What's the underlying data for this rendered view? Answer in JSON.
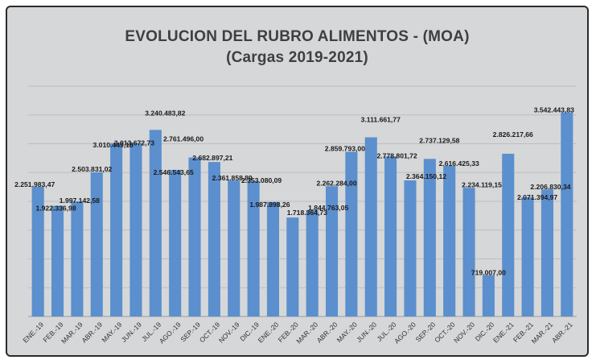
{
  "chart_data": {
    "type": "bar",
    "title": "EVOLUCION DEL RUBRO ALIMENTOS - (MOA)",
    "subtitle": "(Cargas 2019-2021)",
    "categories": [
      "ENE.-19",
      "FEB.-19",
      "MAR.-19",
      "ABR.-19",
      "MAY.-19",
      "JUN.-19",
      "JUL.-19",
      "AGO.-19",
      "SEP.-19",
      "OCT.-19",
      "NOV.-19",
      "DIC.-19",
      "ENE.-20",
      "FEB.-20",
      "MAR.-20",
      "ABR.-20",
      "MAY.-20",
      "JUN.-20",
      "JUL.-20",
      "AGO.-20",
      "SEP.-20",
      "OCT.-20",
      "NOV.-20",
      "DIC.-20",
      "ENE.-21",
      "FEB.-21",
      "MAR.-21",
      "ABR.-21"
    ],
    "values": [
      2251983.47,
      1922336.98,
      1997142.58,
      2503831.02,
      3010449.18,
      3013672.73,
      3240483.82,
      2546543.65,
      2761496.0,
      2682897.21,
      2361858.89,
      2353080.09,
      1987898.26,
      1718364.73,
      1844763.05,
      2262284.0,
      2859793.0,
      3111661.77,
      2778801.72,
      2364150.12,
      2737129.58,
      2616425.33,
      2234119.15,
      719007.0,
      2826217.66,
      2071394.97,
      2206830.34,
      3542443.83
    ],
    "data_labels": [
      "2.251.983,47",
      "1.922.336,98",
      "1.997.142,58",
      "2.503.831,02",
      "3.010.449,18",
      "3.013.672,73",
      "3.240.483,82",
      "2.546.543,65",
      "2.761.496,00",
      "2.682.897,21",
      "2.361.858,89",
      "2.353.080,09",
      "1.987.898,26",
      "1.718.364,73",
      "1.844.763,05",
      "2.262.284,00",
      "2.859.793,00",
      "3.111.661,77",
      "2.778.801,72",
      "2.364.150,12",
      "2.737.129,58",
      "2.616.425,33",
      "2.234.119,15",
      "719.007,00",
      "2.826.217,66",
      "2.071.394,97",
      "2.206.830,34",
      "3.542.443,83"
    ],
    "ylim": [
      0,
      4000000
    ],
    "grid": true,
    "legend": "none",
    "bar_color": "#5b8fce",
    "background_color": "#d6d7d9",
    "gridline_color": "#bcbdc0"
  }
}
